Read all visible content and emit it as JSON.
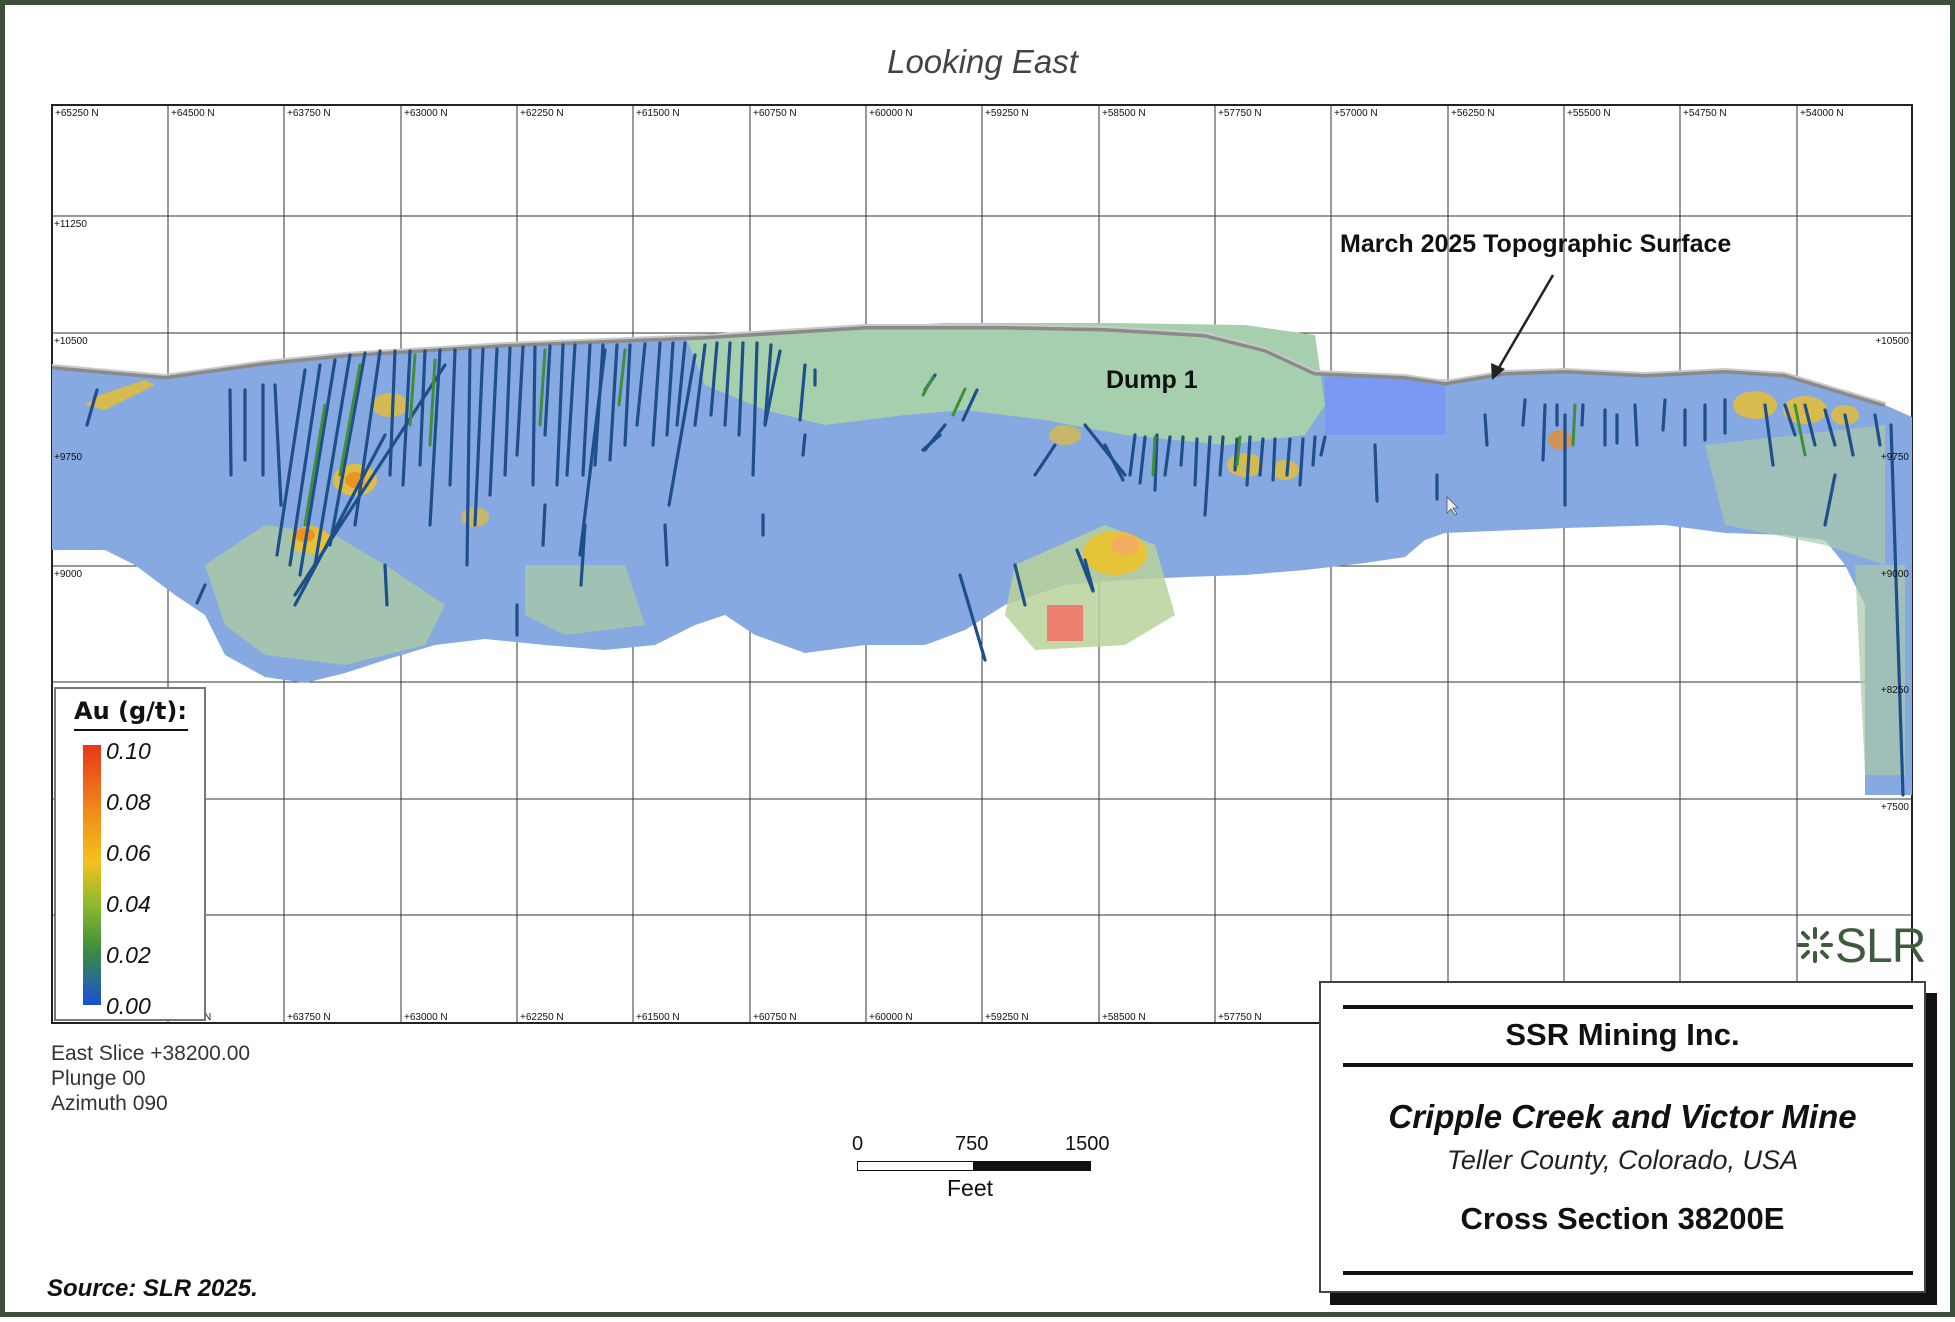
{
  "view_title": "Looking East",
  "northing_labels": [
    "+65250 N",
    "+64500 N",
    "+63750 N",
    "+63000 N",
    "+62250 N",
    "+61500 N",
    "+60750 N",
    "+60000 N",
    "+59250 N",
    "+58500 N",
    "+57750 N",
    "+57000 N",
    "+56250 N",
    "+55500 N",
    "+54750 N",
    "+54000 N"
  ],
  "bottom_northing_labels": [
    "N",
    "+63750 N",
    "+63000 N",
    "+62250 N",
    "+61500 N",
    "+60750 N",
    "+60000 N",
    "+59250 N",
    "+58500 N",
    "+57750 N"
  ],
  "elevation_labels_left": [
    "+11250",
    "+10500",
    "+9750",
    "+9000"
  ],
  "elevation_labels_right": [
    "+10500",
    "+9750",
    "+9000",
    "+8250",
    "+7500"
  ],
  "annotations": {
    "topo_surface": "March 2025 Topographic Surface",
    "dump": "Dump 1"
  },
  "legend": {
    "title": "Au (g/t):",
    "values": [
      "0.10",
      "0.08",
      "0.06",
      "0.04",
      "0.02",
      "0.00"
    ],
    "colors": [
      "#e8351a",
      "#f08a1a",
      "#f2c21c",
      "#8ab82e",
      "#3f8f3a",
      "#1a4fd8"
    ]
  },
  "slice_info": [
    "East Slice +38200.00",
    "Plunge 00",
    "Azimuth 090"
  ],
  "scale_bar": {
    "ticks": [
      "0",
      "750",
      "1500"
    ],
    "unit": "Feet"
  },
  "logo": {
    "text": "SLR",
    "mark_icon": "slr-starburst-icon"
  },
  "title_block": {
    "company": "SSR Mining Inc.",
    "mine": "Cripple Creek and Victor Mine",
    "location": "Teller County, Colorado, USA",
    "section": "Cross Section 38200E"
  },
  "source": "Source: SLR 2025.",
  "colors": {
    "frame": "#3b4f3b",
    "block_model_low": "#7fa6e6",
    "block_model_mid": "#9cc79a",
    "dump": "#a8cfae",
    "drillhole": "#1e4f8a",
    "logo": "#3e5b3e"
  }
}
